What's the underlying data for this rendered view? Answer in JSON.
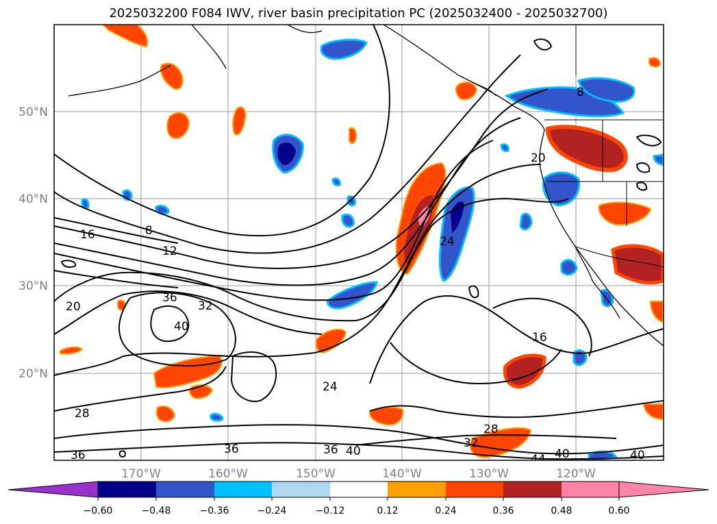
{
  "title": "2025032200 F084 IWV, river basin precipitation PC (2025032400 - 2025032700)",
  "map": {
    "lat_labels": [
      "50°N",
      "40°N",
      "30°N",
      "20°N"
    ],
    "lon_labels": [
      "170°W",
      "160°W",
      "150°W",
      "140°W",
      "130°W",
      "120°W"
    ],
    "contour_labels": [
      "8",
      "12",
      "16",
      "20",
      "24",
      "28",
      "32",
      "36",
      "40",
      "44"
    ]
  },
  "colorbar": {
    "colors": [
      "#9932cc",
      "#00008b",
      "#3355cc",
      "#00bfff",
      "#add8f0",
      "#ffffff",
      "#ffe58a",
      "#ffa000",
      "#ff4500",
      "#b22222",
      "#ff85a8"
    ],
    "tick_labels": [
      "−0.60",
      "−0.48",
      "−0.36",
      "−0.24",
      "−0.12",
      "0.12",
      "0.24",
      "0.36",
      "0.48",
      "0.60"
    ]
  }
}
